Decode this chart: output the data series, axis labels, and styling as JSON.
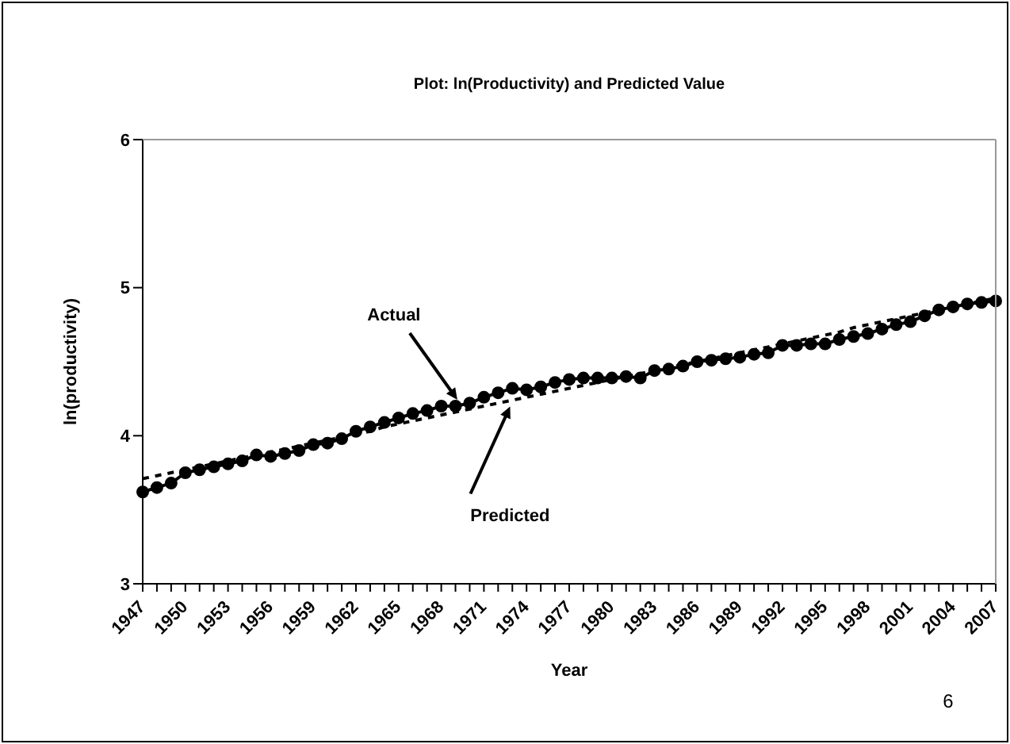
{
  "chart_data": {
    "type": "line",
    "title": "Plot:  ln(Productivity) and Predicted Value",
    "xlabel": "Year",
    "ylabel": "ln(productivity)",
    "categories": [
      "1947",
      null,
      null,
      "1950",
      null,
      null,
      "1953",
      null,
      null,
      "1956",
      null,
      null,
      "1959",
      null,
      null,
      "1962",
      null,
      null,
      "1965",
      null,
      null,
      "1968",
      null,
      null,
      "1971",
      null,
      null,
      "1974",
      null,
      null,
      "1977",
      null,
      null,
      "1980",
      null,
      null,
      "1983",
      null,
      null,
      "1986",
      null,
      null,
      "1989",
      null,
      null,
      "1992",
      null,
      null,
      "1995",
      null,
      null,
      "1998",
      null,
      null,
      "2001",
      null,
      null,
      "2004",
      null,
      null,
      "2007"
    ],
    "series": [
      {
        "color": "#000000",
        "marker": "circle",
        "line_style": "solid",
        "values": [
          3.62,
          3.65,
          3.68,
          3.75,
          3.77,
          3.79,
          3.81,
          3.83,
          3.87,
          3.86,
          3.88,
          3.9,
          3.94,
          3.95,
          3.98,
          4.03,
          4.06,
          4.09,
          4.12,
          4.15,
          4.17,
          4.2,
          4.2,
          4.22,
          4.26,
          4.29,
          4.32,
          4.31,
          4.33,
          4.36,
          4.38,
          4.39,
          4.39,
          4.39,
          4.4,
          4.39,
          4.44,
          4.45,
          4.47,
          4.5,
          4.51,
          4.52,
          4.53,
          4.55,
          4.56,
          4.61,
          4.61,
          4.62,
          4.62,
          4.65,
          4.67,
          4.69,
          4.72,
          4.75,
          4.77,
          4.81,
          4.85,
          4.87,
          4.89,
          4.9,
          4.91
        ]
      },
      {
        "color": "#000000",
        "marker": "none",
        "line_style": "dashed",
        "values": [
          3.71,
          3.73,
          3.75,
          3.77,
          3.79,
          3.81,
          3.83,
          3.85,
          3.87,
          3.89,
          3.91,
          3.93,
          3.95,
          3.97,
          3.99,
          4.01,
          4.03,
          4.06,
          4.08,
          4.1,
          4.12,
          4.14,
          4.16,
          4.18,
          4.2,
          4.22,
          4.24,
          4.26,
          4.28,
          4.3,
          4.32,
          4.34,
          4.36,
          4.38,
          4.4,
          4.42,
          4.44,
          4.46,
          4.48,
          4.5,
          4.52,
          4.54,
          4.56,
          4.58,
          4.6,
          4.62,
          4.64,
          4.66,
          4.68,
          4.7,
          4.73,
          4.75,
          4.77,
          4.79,
          4.81,
          4.83,
          4.85,
          4.87,
          4.89,
          4.91,
          4.93
        ]
      }
    ],
    "ylim": [
      3,
      6
    ],
    "yticks": [
      3,
      4,
      5,
      6
    ],
    "grid": false,
    "legend": false,
    "annotations": [
      "Actual",
      "Predicted",
      "6"
    ]
  }
}
